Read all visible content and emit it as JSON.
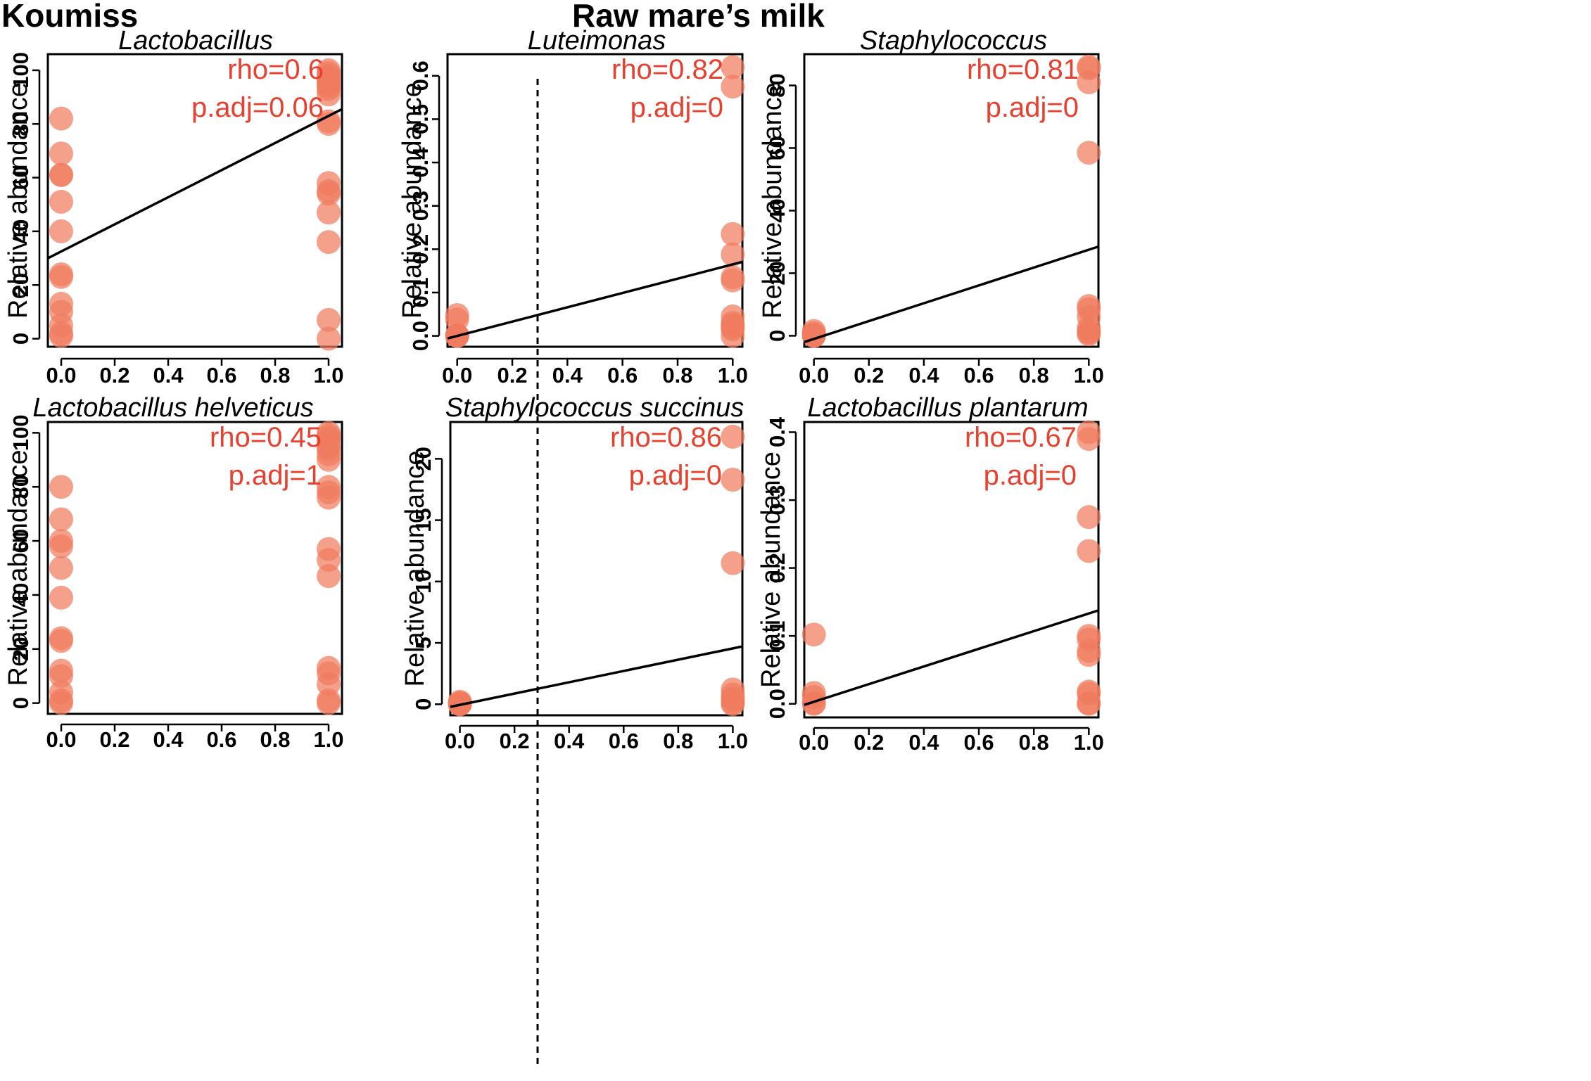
{
  "groups": {
    "left": "Koumiss",
    "right": "Raw mare’s milk"
  },
  "point_color": "#f07b5e",
  "text_color": "#e8402f",
  "chart_data": [
    {
      "type": "scatter",
      "title": "Lactobacillus",
      "ylabel": "Relative abundance",
      "xlabel": "",
      "xlim": [
        -0.05,
        1.05
      ],
      "ylim": [
        -3,
        106
      ],
      "xticks": [
        0,
        0.2,
        0.4,
        0.6,
        0.8,
        1.0
      ],
      "xtick_labels": [
        "0.0",
        "0.2",
        "0.4",
        "0.6",
        "0.8",
        "1.0"
      ],
      "yticks": [
        0,
        20,
        40,
        60,
        80,
        100
      ],
      "ytick_labels": [
        "0",
        "20",
        "40",
        "60",
        "80",
        "100"
      ],
      "rho": "rho=0.6",
      "p_adj": "p.adj=0.06",
      "fit": {
        "intercept": 32.5,
        "slope": 50.5
      },
      "points": [
        {
          "x": 0,
          "y": 82
        },
        {
          "x": 0,
          "y": 69
        },
        {
          "x": 0,
          "y": 61
        },
        {
          "x": 0,
          "y": 61
        },
        {
          "x": 0,
          "y": 51
        },
        {
          "x": 0,
          "y": 40
        },
        {
          "x": 0,
          "y": 24
        },
        {
          "x": 0,
          "y": 23
        },
        {
          "x": 0,
          "y": 13
        },
        {
          "x": 0,
          "y": 10
        },
        {
          "x": 0,
          "y": 5
        },
        {
          "x": 0,
          "y": 2
        },
        {
          "x": 0,
          "y": 1
        },
        {
          "x": 1,
          "y": 100
        },
        {
          "x": 1,
          "y": 99
        },
        {
          "x": 1,
          "y": 98
        },
        {
          "x": 1,
          "y": 97
        },
        {
          "x": 1,
          "y": 96
        },
        {
          "x": 1,
          "y": 95
        },
        {
          "x": 1,
          "y": 94
        },
        {
          "x": 1,
          "y": 93
        },
        {
          "x": 1,
          "y": 91
        },
        {
          "x": 1,
          "y": 81
        },
        {
          "x": 1,
          "y": 80
        },
        {
          "x": 1,
          "y": 58
        },
        {
          "x": 1,
          "y": 55
        },
        {
          "x": 1,
          "y": 54
        },
        {
          "x": 1,
          "y": 47
        },
        {
          "x": 1,
          "y": 36
        },
        {
          "x": 1,
          "y": 7
        },
        {
          "x": 1,
          "y": 0
        }
      ]
    },
    {
      "type": "scatter",
      "title": "Lactobacillus helveticus",
      "ylabel": "Relative abundance",
      "xlabel": "",
      "xlim": [
        -0.05,
        1.05
      ],
      "ylim": [
        -4,
        104
      ],
      "xticks": [
        0,
        0.2,
        0.4,
        0.6,
        0.8,
        1.0
      ],
      "xtick_labels": [
        "0.0",
        "0.2",
        "0.4",
        "0.6",
        "0.8",
        "1.0"
      ],
      "yticks": [
        0,
        20,
        40,
        60,
        80,
        100
      ],
      "ytick_labels": [
        "0",
        "20",
        "40",
        "60",
        "80",
        "100"
      ],
      "rho": "rho=0.45",
      "p_adj": "p.adj=1",
      "fit": null,
      "points": [
        {
          "x": 0,
          "y": 80
        },
        {
          "x": 0,
          "y": 68
        },
        {
          "x": 0,
          "y": 60
        },
        {
          "x": 0,
          "y": 58
        },
        {
          "x": 0,
          "y": 50
        },
        {
          "x": 0,
          "y": 39
        },
        {
          "x": 0,
          "y": 24
        },
        {
          "x": 0,
          "y": 23
        },
        {
          "x": 0,
          "y": 12
        },
        {
          "x": 0,
          "y": 10
        },
        {
          "x": 0,
          "y": 4
        },
        {
          "x": 0,
          "y": 1
        },
        {
          "x": 0,
          "y": 0
        },
        {
          "x": 1,
          "y": 100
        },
        {
          "x": 1,
          "y": 99
        },
        {
          "x": 1,
          "y": 98
        },
        {
          "x": 1,
          "y": 97
        },
        {
          "x": 1,
          "y": 95
        },
        {
          "x": 1,
          "y": 94
        },
        {
          "x": 1,
          "y": 92
        },
        {
          "x": 1,
          "y": 90
        },
        {
          "x": 1,
          "y": 80
        },
        {
          "x": 1,
          "y": 78
        },
        {
          "x": 1,
          "y": 76
        },
        {
          "x": 1,
          "y": 57
        },
        {
          "x": 1,
          "y": 53
        },
        {
          "x": 1,
          "y": 47
        },
        {
          "x": 1,
          "y": 13
        },
        {
          "x": 1,
          "y": 11
        },
        {
          "x": 1,
          "y": 7
        },
        {
          "x": 1,
          "y": 1
        },
        {
          "x": 1,
          "y": 0
        }
      ]
    },
    {
      "type": "scatter",
      "title": "Luteimonas",
      "ylabel": "Relative abundance",
      "xlabel": "",
      "xlim": [
        -0.035,
        1.035
      ],
      "ylim": [
        -0.025,
        0.65
      ],
      "xticks": [
        0,
        0.2,
        0.4,
        0.6,
        0.8,
        1.0
      ],
      "xtick_labels": [
        "0.0",
        "0.2",
        "0.4",
        "0.6",
        "0.8",
        "1.0"
      ],
      "yticks": [
        0,
        0.1,
        0.2,
        0.3,
        0.4,
        0.5,
        0.6
      ],
      "ytick_labels": [
        "0.0",
        "0.1",
        "0.2",
        "0.3",
        "0.4",
        "0.5",
        "0.6"
      ],
      "rho": "rho=0.82",
      "p_adj": "p.adj=0",
      "fit": {
        "intercept": 0.0,
        "slope": 0.165
      },
      "points": [
        {
          "x": 0,
          "y": 0.048
        },
        {
          "x": 0,
          "y": 0.038
        },
        {
          "x": 0,
          "y": 0.002
        },
        {
          "x": 0,
          "y": 0.001
        },
        {
          "x": 0,
          "y": 0.0
        },
        {
          "x": 0,
          "y": 0.0
        },
        {
          "x": 1,
          "y": 0.62
        },
        {
          "x": 1,
          "y": 0.575
        },
        {
          "x": 1,
          "y": 0.235
        },
        {
          "x": 1,
          "y": 0.188
        },
        {
          "x": 1,
          "y": 0.135
        },
        {
          "x": 1,
          "y": 0.128
        },
        {
          "x": 1,
          "y": 0.045
        },
        {
          "x": 1,
          "y": 0.03
        },
        {
          "x": 1,
          "y": 0.025
        },
        {
          "x": 1,
          "y": 0.02
        },
        {
          "x": 1,
          "y": 0.015
        },
        {
          "x": 1,
          "y": 0.0
        }
      ]
    },
    {
      "type": "scatter",
      "title": "Staphylococcus",
      "ylabel": "Relative abundance",
      "xlabel": "",
      "xlim": [
        -0.035,
        1.035
      ],
      "ylim": [
        -3.5,
        90
      ],
      "xticks": [
        0,
        0.2,
        0.4,
        0.6,
        0.8,
        1.0
      ],
      "xtick_labels": [
        "0.0",
        "0.2",
        "0.4",
        "0.6",
        "0.8",
        "1.0"
      ],
      "yticks": [
        0,
        20,
        40,
        60,
        80
      ],
      "ytick_labels": [
        "0",
        "20",
        "40",
        "60",
        "80"
      ],
      "rho": "rho=0.81",
      "p_adj": "p.adj=0",
      "fit": {
        "intercept": -1.0,
        "slope": 28.5
      },
      "points": [
        {
          "x": 0,
          "y": 1.5
        },
        {
          "x": 0,
          "y": 0.8
        },
        {
          "x": 0,
          "y": 0.3
        },
        {
          "x": 0,
          "y": 0.1
        },
        {
          "x": 0,
          "y": 0.0
        },
        {
          "x": 0,
          "y": 0.0
        },
        {
          "x": 1,
          "y": 86
        },
        {
          "x": 1,
          "y": 85.5
        },
        {
          "x": 1,
          "y": 81
        },
        {
          "x": 1,
          "y": 58.5
        },
        {
          "x": 1,
          "y": 9.5
        },
        {
          "x": 1,
          "y": 8.5
        },
        {
          "x": 1,
          "y": 6
        },
        {
          "x": 1,
          "y": 2.5
        },
        {
          "x": 1,
          "y": 1.5
        },
        {
          "x": 1,
          "y": 1
        },
        {
          "x": 1,
          "y": 0.5
        }
      ]
    },
    {
      "type": "scatter",
      "title": "Staphylococcus succinus",
      "ylabel": "Relative abundance",
      "xlabel": "",
      "xlim": [
        -0.035,
        1.035
      ],
      "ylim": [
        -0.9,
        23
      ],
      "xticks": [
        0,
        0.2,
        0.4,
        0.6,
        0.8,
        1.0
      ],
      "xtick_labels": [
        "0.0",
        "0.2",
        "0.4",
        "0.6",
        "0.8",
        "1.0"
      ],
      "yticks": [
        0,
        5,
        10,
        15,
        20
      ],
      "ytick_labels": [
        "0",
        "5",
        "10",
        "15",
        "20"
      ],
      "rho": "rho=0.86",
      "p_adj": "p.adj=0",
      "fit": {
        "intercept": -0.05,
        "slope": 4.6
      },
      "points": [
        {
          "x": 0,
          "y": 0.2
        },
        {
          "x": 0,
          "y": 0.1
        },
        {
          "x": 0,
          "y": 0.05
        },
        {
          "x": 0,
          "y": 0.0
        },
        {
          "x": 0,
          "y": 0.0
        },
        {
          "x": 1,
          "y": 21.8
        },
        {
          "x": 1,
          "y": 18.3
        },
        {
          "x": 1,
          "y": 11.5
        },
        {
          "x": 1,
          "y": 1.2
        },
        {
          "x": 1,
          "y": 0.8
        },
        {
          "x": 1,
          "y": 0.5
        },
        {
          "x": 1,
          "y": 0.3
        },
        {
          "x": 1,
          "y": 0.1
        },
        {
          "x": 1,
          "y": 0.0
        }
      ]
    },
    {
      "type": "scatter",
      "title": "Lactobacillus plantarum",
      "ylabel": "Relative abundance",
      "xlabel": "",
      "xlim": [
        -0.035,
        1.035
      ],
      "ylim": [
        -0.02,
        0.415
      ],
      "xticks": [
        0,
        0.2,
        0.4,
        0.6,
        0.8,
        1.0
      ],
      "xtick_labels": [
        "0.0",
        "0.2",
        "0.4",
        "0.6",
        "0.8",
        "1.0"
      ],
      "yticks": [
        0,
        0.1,
        0.2,
        0.3,
        0.4
      ],
      "ytick_labels": [
        "0.0",
        "0.1",
        "0.2",
        "0.3",
        "0.4"
      ],
      "rho": "rho=0.67",
      "p_adj": "p.adj=0",
      "fit": {
        "intercept": 0.003,
        "slope": 0.13
      },
      "points": [
        {
          "x": 0,
          "y": 0.102
        },
        {
          "x": 0,
          "y": 0.016
        },
        {
          "x": 0,
          "y": 0.01
        },
        {
          "x": 0,
          "y": 0.001
        },
        {
          "x": 0,
          "y": 0.0
        },
        {
          "x": 1,
          "y": 0.4
        },
        {
          "x": 1,
          "y": 0.39
        },
        {
          "x": 1,
          "y": 0.275
        },
        {
          "x": 1,
          "y": 0.225
        },
        {
          "x": 1,
          "y": 0.1
        },
        {
          "x": 1,
          "y": 0.095
        },
        {
          "x": 1,
          "y": 0.078
        },
        {
          "x": 1,
          "y": 0.072
        },
        {
          "x": 1,
          "y": 0.018
        },
        {
          "x": 1,
          "y": 0.015
        },
        {
          "x": 1,
          "y": 0.001
        },
        {
          "x": 1,
          "y": 0.0
        }
      ]
    }
  ]
}
